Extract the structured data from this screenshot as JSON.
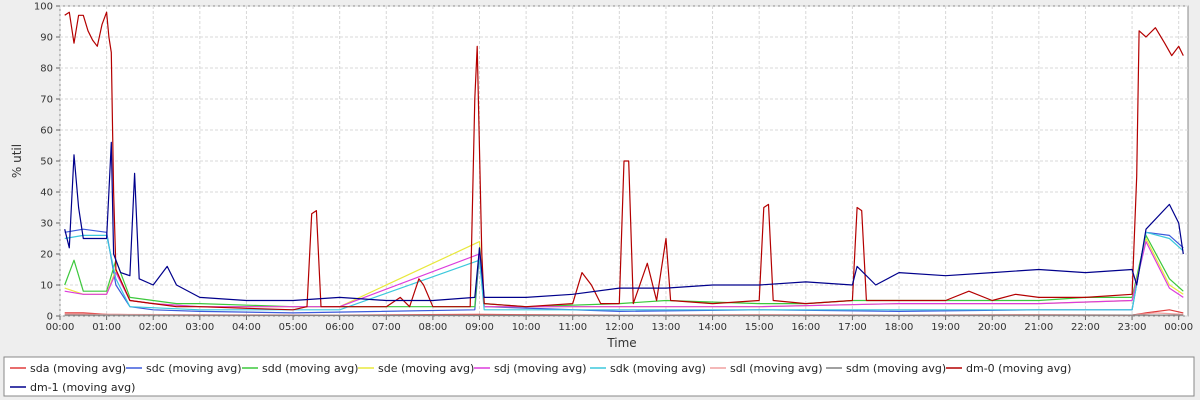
{
  "chart_data": {
    "type": "line",
    "title": "",
    "xlabel": "Time",
    "ylabel": "% util",
    "ylim": [
      0,
      100
    ],
    "xlim": [
      0,
      24.2
    ],
    "grid": true,
    "legend_placement": "bottom",
    "y_ticks": [
      0,
      10,
      20,
      30,
      40,
      50,
      60,
      70,
      80,
      90,
      100
    ],
    "x_ticks": [
      {
        "at": 0,
        "label": "00:00"
      },
      {
        "at": 1,
        "label": "01:00"
      },
      {
        "at": 2,
        "label": "02:00"
      },
      {
        "at": 3,
        "label": "03:00"
      },
      {
        "at": 4,
        "label": "04:00"
      },
      {
        "at": 5,
        "label": "05:00"
      },
      {
        "at": 6,
        "label": "06:00"
      },
      {
        "at": 7,
        "label": "07:00"
      },
      {
        "at": 8,
        "label": "08:00"
      },
      {
        "at": 9,
        "label": "09:00"
      },
      {
        "at": 10,
        "label": "10:00"
      },
      {
        "at": 11,
        "label": "11:00"
      },
      {
        "at": 12,
        "label": "12:00"
      },
      {
        "at": 13,
        "label": "13:00"
      },
      {
        "at": 14,
        "label": "14:00"
      },
      {
        "at": 15,
        "label": "15:00"
      },
      {
        "at": 16,
        "label": "16:00"
      },
      {
        "at": 17,
        "label": "17:00"
      },
      {
        "at": 18,
        "label": "18:00"
      },
      {
        "at": 19,
        "label": "19:00"
      },
      {
        "at": 20,
        "label": "20:00"
      },
      {
        "at": 21,
        "label": "21:00"
      },
      {
        "at": 22,
        "label": "22:00"
      },
      {
        "at": 23,
        "label": "23:00"
      },
      {
        "at": 24,
        "label": "00:00"
      }
    ],
    "series": [
      {
        "name": "sda (moving avg)",
        "color": "#e03c3c",
        "points": [
          [
            0.1,
            1
          ],
          [
            0.5,
            1
          ],
          [
            1,
            0.5
          ],
          [
            3,
            0.3
          ],
          [
            6,
            0.3
          ],
          [
            9,
            0.5
          ],
          [
            12,
            0.3
          ],
          [
            15,
            0.4
          ],
          [
            18,
            0.3
          ],
          [
            21,
            0.4
          ],
          [
            23,
            0.3
          ],
          [
            23.3,
            1
          ],
          [
            23.8,
            2
          ],
          [
            24.1,
            1
          ]
        ]
      },
      {
        "name": "sdc (moving avg)",
        "color": "#3c5adc",
        "points": [
          [
            0.1,
            27
          ],
          [
            0.5,
            28
          ],
          [
            1,
            27
          ],
          [
            1.2,
            10
          ],
          [
            1.5,
            3
          ],
          [
            2,
            2
          ],
          [
            3,
            1.5
          ],
          [
            5,
            1
          ],
          [
            8.9,
            2
          ],
          [
            9,
            20
          ],
          [
            9.1,
            3
          ],
          [
            12,
            1.5
          ],
          [
            15,
            2
          ],
          [
            18,
            1.5
          ],
          [
            21,
            2
          ],
          [
            23,
            2
          ],
          [
            23.3,
            27
          ],
          [
            23.8,
            26
          ],
          [
            24.1,
            22
          ]
        ]
      },
      {
        "name": "sdd (moving avg)",
        "color": "#3cc83c",
        "points": [
          [
            0.1,
            10
          ],
          [
            0.3,
            18
          ],
          [
            0.5,
            8
          ],
          [
            1,
            8
          ],
          [
            1.2,
            18
          ],
          [
            1.5,
            6
          ],
          [
            2,
            5
          ],
          [
            2.5,
            4
          ],
          [
            3,
            4
          ],
          [
            5,
            3
          ],
          [
            7,
            3
          ],
          [
            8.9,
            3
          ],
          [
            9,
            22
          ],
          [
            9.1,
            4
          ],
          [
            10,
            3
          ],
          [
            12,
            4
          ],
          [
            13,
            5
          ],
          [
            15,
            4
          ],
          [
            16,
            4
          ],
          [
            17,
            5
          ],
          [
            18,
            5
          ],
          [
            19,
            5
          ],
          [
            20,
            5
          ],
          [
            21,
            5
          ],
          [
            22,
            6
          ],
          [
            23,
            6
          ],
          [
            23.3,
            26
          ],
          [
            23.8,
            12
          ],
          [
            24.1,
            8
          ]
        ]
      },
      {
        "name": "sde (moving avg)",
        "color": "#e8e83c",
        "points": [
          [
            0.1,
            9
          ],
          [
            0.5,
            7
          ],
          [
            1,
            7
          ],
          [
            1.2,
            15
          ],
          [
            1.5,
            5
          ],
          [
            2,
            4
          ],
          [
            3,
            3
          ],
          [
            6,
            3
          ],
          [
            9,
            24
          ],
          [
            9.1,
            3
          ],
          [
            12,
            3
          ],
          [
            15,
            3
          ],
          [
            18,
            4
          ],
          [
            21,
            4
          ],
          [
            23,
            5
          ],
          [
            23.3,
            25
          ],
          [
            23.8,
            10
          ],
          [
            24.1,
            7
          ]
        ]
      },
      {
        "name": "sdj (moving avg)",
        "color": "#dc3cdc",
        "points": [
          [
            0.1,
            8
          ],
          [
            0.5,
            7
          ],
          [
            1,
            7
          ],
          [
            1.2,
            14
          ],
          [
            1.5,
            5
          ],
          [
            2,
            4
          ],
          [
            3,
            3
          ],
          [
            6,
            3
          ],
          [
            9,
            20
          ],
          [
            9.1,
            3
          ],
          [
            12,
            3
          ],
          [
            15,
            3
          ],
          [
            18,
            4
          ],
          [
            21,
            4
          ],
          [
            23,
            5
          ],
          [
            23.3,
            24
          ],
          [
            23.8,
            9
          ],
          [
            24.1,
            6
          ]
        ]
      },
      {
        "name": "sdk (moving avg)",
        "color": "#3cc8dc",
        "points": [
          [
            0.1,
            25
          ],
          [
            0.5,
            26
          ],
          [
            1,
            26
          ],
          [
            1.2,
            12
          ],
          [
            1.5,
            3
          ],
          [
            3,
            2
          ],
          [
            6,
            2
          ],
          [
            9,
            18
          ],
          [
            9.1,
            2
          ],
          [
            12,
            2
          ],
          [
            15,
            2
          ],
          [
            18,
            2
          ],
          [
            21,
            2
          ],
          [
            23,
            2
          ],
          [
            23.3,
            27
          ],
          [
            23.8,
            25
          ],
          [
            24.1,
            21
          ]
        ]
      },
      {
        "name": "sdl (moving avg)",
        "color": "#f0a0a0",
        "points": [
          [
            0.1,
            0.5
          ],
          [
            1,
            0.5
          ],
          [
            6,
            0.3
          ],
          [
            12,
            0.3
          ],
          [
            18,
            0.3
          ],
          [
            23,
            0.3
          ],
          [
            23.5,
            1
          ],
          [
            24.1,
            0.5
          ]
        ]
      },
      {
        "name": "sdm (moving avg)",
        "color": "#808080",
        "points": [
          [
            0.1,
            0.3
          ],
          [
            6,
            0.2
          ],
          [
            12,
            0.2
          ],
          [
            18,
            0.2
          ],
          [
            24.1,
            0.3
          ]
        ]
      },
      {
        "name": "dm-0 (moving avg)",
        "color": "#b40000",
        "points": [
          [
            0.1,
            97
          ],
          [
            0.2,
            98
          ],
          [
            0.3,
            88
          ],
          [
            0.4,
            97
          ],
          [
            0.5,
            97
          ],
          [
            0.6,
            92
          ],
          [
            0.7,
            89
          ],
          [
            0.8,
            87
          ],
          [
            0.9,
            94
          ],
          [
            1,
            98
          ],
          [
            1.05,
            90
          ],
          [
            1.1,
            85
          ],
          [
            1.15,
            40
          ],
          [
            1.2,
            15
          ],
          [
            1.5,
            5
          ],
          [
            2,
            4
          ],
          [
            2.5,
            3
          ],
          [
            3,
            3
          ],
          [
            4,
            2.5
          ],
          [
            5,
            2
          ],
          [
            5.3,
            3
          ],
          [
            5.4,
            33
          ],
          [
            5.5,
            34
          ],
          [
            5.6,
            3
          ],
          [
            6,
            3
          ],
          [
            7,
            3
          ],
          [
            7.3,
            6
          ],
          [
            7.5,
            3
          ],
          [
            7.7,
            12
          ],
          [
            7.8,
            10
          ],
          [
            8,
            3
          ],
          [
            8.8,
            3
          ],
          [
            8.9,
            70
          ],
          [
            8.95,
            87
          ],
          [
            9.05,
            20
          ],
          [
            9.1,
            4
          ],
          [
            10,
            3
          ],
          [
            11,
            4
          ],
          [
            11.2,
            14
          ],
          [
            11.4,
            10
          ],
          [
            11.6,
            4
          ],
          [
            12,
            4
          ],
          [
            12.1,
            50
          ],
          [
            12.2,
            50
          ],
          [
            12.3,
            4
          ],
          [
            12.6,
            17
          ],
          [
            12.8,
            5
          ],
          [
            13,
            25
          ],
          [
            13.1,
            5
          ],
          [
            14,
            4
          ],
          [
            15,
            5
          ],
          [
            15.1,
            35
          ],
          [
            15.2,
            36
          ],
          [
            15.3,
            5
          ],
          [
            16,
            4
          ],
          [
            17,
            5
          ],
          [
            17.1,
            35
          ],
          [
            17.2,
            34
          ],
          [
            17.3,
            5
          ],
          [
            18,
            5
          ],
          [
            19,
            5
          ],
          [
            19.5,
            8
          ],
          [
            20,
            5
          ],
          [
            20.5,
            7
          ],
          [
            21,
            6
          ],
          [
            22,
            6
          ],
          [
            23,
            7
          ],
          [
            23.1,
            45
          ],
          [
            23.15,
            92
          ],
          [
            23.3,
            90
          ],
          [
            23.5,
            93
          ],
          [
            23.7,
            88
          ],
          [
            23.85,
            84
          ],
          [
            24,
            87
          ],
          [
            24.1,
            84
          ]
        ]
      },
      {
        "name": "dm-1 (moving avg)",
        "color": "#00008c",
        "points": [
          [
            0.1,
            28
          ],
          [
            0.2,
            22
          ],
          [
            0.3,
            52
          ],
          [
            0.4,
            35
          ],
          [
            0.5,
            25
          ],
          [
            1,
            25
          ],
          [
            1.05,
            40
          ],
          [
            1.1,
            56
          ],
          [
            1.15,
            20
          ],
          [
            1.3,
            14
          ],
          [
            1.5,
            13
          ],
          [
            1.6,
            46
          ],
          [
            1.7,
            12
          ],
          [
            2,
            10
          ],
          [
            2.3,
            16
          ],
          [
            2.5,
            10
          ],
          [
            3,
            6
          ],
          [
            4,
            5
          ],
          [
            5,
            5
          ],
          [
            6,
            6
          ],
          [
            7,
            5
          ],
          [
            8,
            5
          ],
          [
            8.9,
            6
          ],
          [
            9,
            22
          ],
          [
            9.1,
            6
          ],
          [
            10,
            6
          ],
          [
            11,
            7
          ],
          [
            12,
            9
          ],
          [
            13,
            9
          ],
          [
            14,
            10
          ],
          [
            15,
            10
          ],
          [
            16,
            11
          ],
          [
            17,
            10
          ],
          [
            17.1,
            16
          ],
          [
            17.5,
            10
          ],
          [
            18,
            14
          ],
          [
            19,
            13
          ],
          [
            20,
            14
          ],
          [
            21,
            15
          ],
          [
            22,
            14
          ],
          [
            23,
            15
          ],
          [
            23.1,
            10
          ],
          [
            23.3,
            28
          ],
          [
            23.8,
            36
          ],
          [
            24,
            30
          ],
          [
            24.1,
            20
          ]
        ]
      }
    ]
  }
}
